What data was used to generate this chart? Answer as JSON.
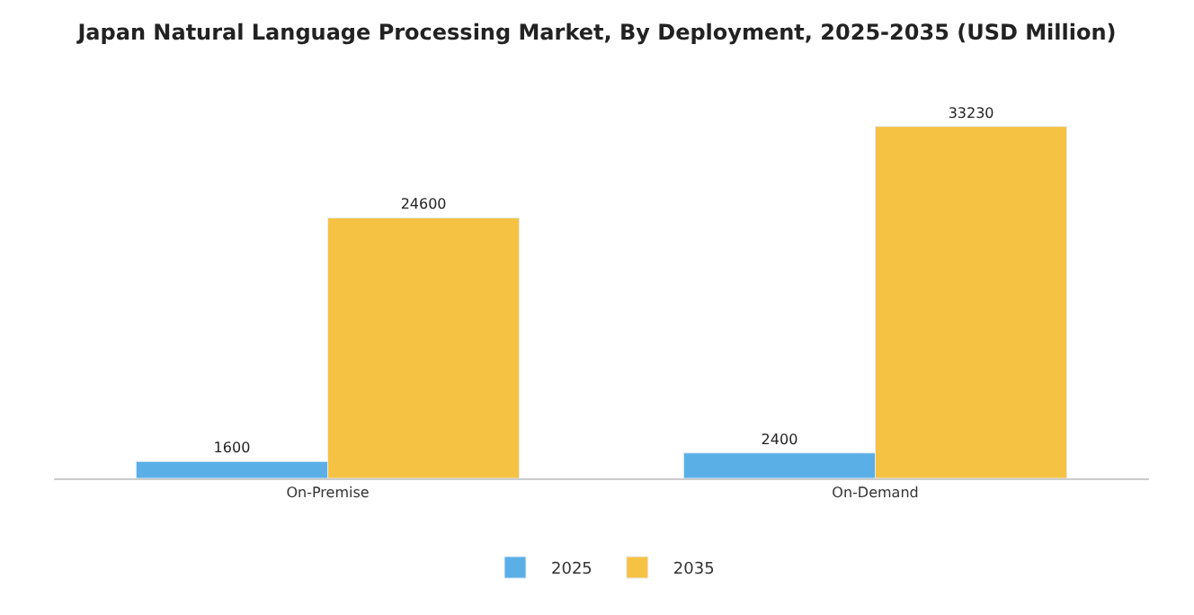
{
  "chart_data": {
    "type": "bar",
    "title": "Japan Natural Language Processing Market, By Deployment, 2025-2035 (USD Million)",
    "categories": [
      "On-Premise",
      "On-Demand"
    ],
    "series": [
      {
        "name": "2025",
        "color": "#5aafe6",
        "values": [
          1600,
          2400
        ]
      },
      {
        "name": "2035",
        "color": "#f6c244",
        "values": [
          24600,
          33230
        ]
      }
    ],
    "tick_labels": "x",
    "data_labels": true,
    "legend": "bottom"
  }
}
